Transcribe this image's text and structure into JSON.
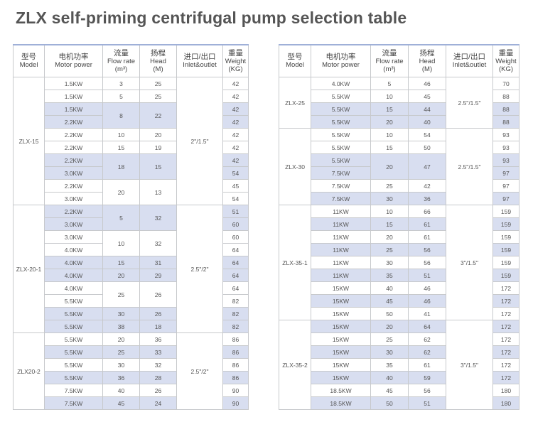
{
  "title": "ZLX self-priming centrifugal pump selection table",
  "headers": {
    "model": {
      "zh": "型号",
      "en": "Model"
    },
    "power": {
      "zh": "电机功率",
      "en": "Motor power"
    },
    "flow": {
      "zh": "流量",
      "en": "Flow rate",
      "unit": "(m³)"
    },
    "head": {
      "zh": "扬程",
      "en": "Head",
      "unit": "(M)"
    },
    "inlet": {
      "zh": "进口/出口",
      "en": "Inlet&outlet"
    },
    "weight": {
      "zh": "重量",
      "en": "Weight",
      "unit": "(KG)"
    }
  },
  "tables": [
    {
      "groups": [
        {
          "model": "ZLX-15",
          "inlet": "2\"/1.5\"",
          "rows": [
            {
              "power": "1.5KW",
              "flow": "3",
              "head": "25",
              "weight": "42",
              "hl": false
            },
            {
              "power": "1.5KW",
              "flow": "5",
              "head": "25",
              "weight": "42",
              "hl": false
            },
            {
              "power": "1.5KW",
              "flow": "8",
              "head": "22",
              "weight": "42",
              "hl": true,
              "span": 2
            },
            {
              "power": "2.2KW",
              "weight": "42",
              "hl": true
            },
            {
              "power": "2.2KW",
              "flow": "10",
              "head": "20",
              "weight": "42",
              "hl": false
            },
            {
              "power": "2.2KW",
              "flow": "15",
              "head": "19",
              "weight": "42",
              "hl": false
            },
            {
              "power": "2.2KW",
              "flow": "18",
              "head": "15",
              "weight": "42",
              "hl": true,
              "span": 2
            },
            {
              "power": "3.0KW",
              "weight": "54",
              "hl": true
            },
            {
              "power": "2.2KW",
              "flow": "20",
              "head": "13",
              "weight": "45",
              "hl": false,
              "span": 2
            },
            {
              "power": "3.0KW",
              "weight": "54",
              "hl": false
            }
          ]
        },
        {
          "model": "ZLX-20-1",
          "inlet": "2.5\"/2\"",
          "rows": [
            {
              "power": "2.2KW",
              "flow": "5",
              "head": "32",
              "weight": "51",
              "hl": true,
              "span": 2
            },
            {
              "power": "3.0KW",
              "weight": "60",
              "hl": true
            },
            {
              "power": "3.0KW",
              "flow": "10",
              "head": "32",
              "weight": "60",
              "hl": false,
              "span": 2
            },
            {
              "power": "4.0KW",
              "weight": "64",
              "hl": false
            },
            {
              "power": "4.0KW",
              "flow": "15",
              "head": "31",
              "weight": "64",
              "hl": true
            },
            {
              "power": "4.0KW",
              "flow": "20",
              "head": "29",
              "weight": "64",
              "hl": true
            },
            {
              "power": "4.0KW",
              "flow": "25",
              "head": "26",
              "weight": "64",
              "hl": false,
              "span": 2
            },
            {
              "power": "5.5KW",
              "weight": "82",
              "hl": false
            },
            {
              "power": "5.5KW",
              "flow": "30",
              "head": "26",
              "weight": "82",
              "hl": true
            },
            {
              "power": "5.5KW",
              "flow": "38",
              "head": "18",
              "weight": "82",
              "hl": true
            }
          ]
        },
        {
          "model": "ZLX20-2",
          "inlet": "2.5\"/2\"",
          "rows": [
            {
              "power": "5.5KW",
              "flow": "20",
              "head": "36",
              "weight": "86",
              "hl": false
            },
            {
              "power": "5.5KW",
              "flow": "25",
              "head": "33",
              "weight": "86",
              "hl": true
            },
            {
              "power": "5.5KW",
              "flow": "30",
              "head": "32",
              "weight": "86",
              "hl": false
            },
            {
              "power": "5.5KW",
              "flow": "36",
              "head": "28",
              "weight": "86",
              "hl": true
            },
            {
              "power": "7.5KW",
              "flow": "40",
              "head": "26",
              "weight": "90",
              "hl": false
            },
            {
              "power": "7.5KW",
              "flow": "45",
              "head": "24",
              "weight": "90",
              "hl": true
            }
          ]
        }
      ]
    },
    {
      "groups": [
        {
          "model": "ZLX-25",
          "inlet": "2.5\"/1.5\"",
          "rows": [
            {
              "power": "4.0KW",
              "flow": "5",
              "head": "46",
              "weight": "70",
              "hl": false
            },
            {
              "power": "5.5KW",
              "flow": "10",
              "head": "45",
              "weight": "88",
              "hl": false
            },
            {
              "power": "5.5KW",
              "flow": "15",
              "head": "44",
              "weight": "88",
              "hl": true
            },
            {
              "power": "5.5KW",
              "flow": "20",
              "head": "40",
              "weight": "88",
              "hl": true
            }
          ]
        },
        {
          "model": "ZLX-30",
          "inlet": "2.5\"/1.5\"",
          "rows": [
            {
              "power": "5.5KW",
              "flow": "10",
              "head": "54",
              "weight": "93",
              "hl": false
            },
            {
              "power": "5.5KW",
              "flow": "15",
              "head": "50",
              "weight": "93",
              "hl": false
            },
            {
              "power": "5.5KW",
              "flow": "20",
              "head": "47",
              "weight": "93",
              "hl": true,
              "span": 2
            },
            {
              "power": "7.5KW",
              "weight": "97",
              "hl": true
            },
            {
              "power": "7.5KW",
              "flow": "25",
              "head": "42",
              "weight": "97",
              "hl": false
            },
            {
              "power": "7.5KW",
              "flow": "30",
              "head": "36",
              "weight": "97",
              "hl": true
            }
          ]
        },
        {
          "model": "ZLX-35-1",
          "inlet": "3\"/1.5\"",
          "rows": [
            {
              "power": "11KW",
              "flow": "10",
              "head": "66",
              "weight": "159",
              "hl": false
            },
            {
              "power": "11KW",
              "flow": "15",
              "head": "61",
              "weight": "159",
              "hl": true
            },
            {
              "power": "11KW",
              "flow": "20",
              "head": "61",
              "weight": "159",
              "hl": false
            },
            {
              "power": "11KW",
              "flow": "25",
              "head": "56",
              "weight": "159",
              "hl": true
            },
            {
              "power": "11KW",
              "flow": "30",
              "head": "56",
              "weight": "159",
              "hl": false
            },
            {
              "power": "11KW",
              "flow": "35",
              "head": "51",
              "weight": "159",
              "hl": true
            },
            {
              "power": "15KW",
              "flow": "40",
              "head": "46",
              "weight": "172",
              "hl": false
            },
            {
              "power": "15KW",
              "flow": "45",
              "head": "46",
              "weight": "172",
              "hl": true
            },
            {
              "power": "15KW",
              "flow": "50",
              "head": "41",
              "weight": "172",
              "hl": false
            }
          ]
        },
        {
          "model": "ZLX-35-2",
          "inlet": "3\"/1.5\"",
          "rows": [
            {
              "power": "15KW",
              "flow": "20",
              "head": "64",
              "weight": "172",
              "hl": true
            },
            {
              "power": "15KW",
              "flow": "25",
              "head": "62",
              "weight": "172",
              "hl": false
            },
            {
              "power": "15KW",
              "flow": "30",
              "head": "62",
              "weight": "172",
              "hl": true
            },
            {
              "power": "15KW",
              "flow": "35",
              "head": "61",
              "weight": "172",
              "hl": false
            },
            {
              "power": "15KW",
              "flow": "40",
              "head": "59",
              "weight": "172",
              "hl": true
            },
            {
              "power": "18.5KW",
              "flow": "45",
              "head": "56",
              "weight": "180",
              "hl": false
            },
            {
              "power": "18.5KW",
              "flow": "50",
              "head": "51",
              "weight": "180",
              "hl": true
            }
          ]
        }
      ]
    }
  ]
}
